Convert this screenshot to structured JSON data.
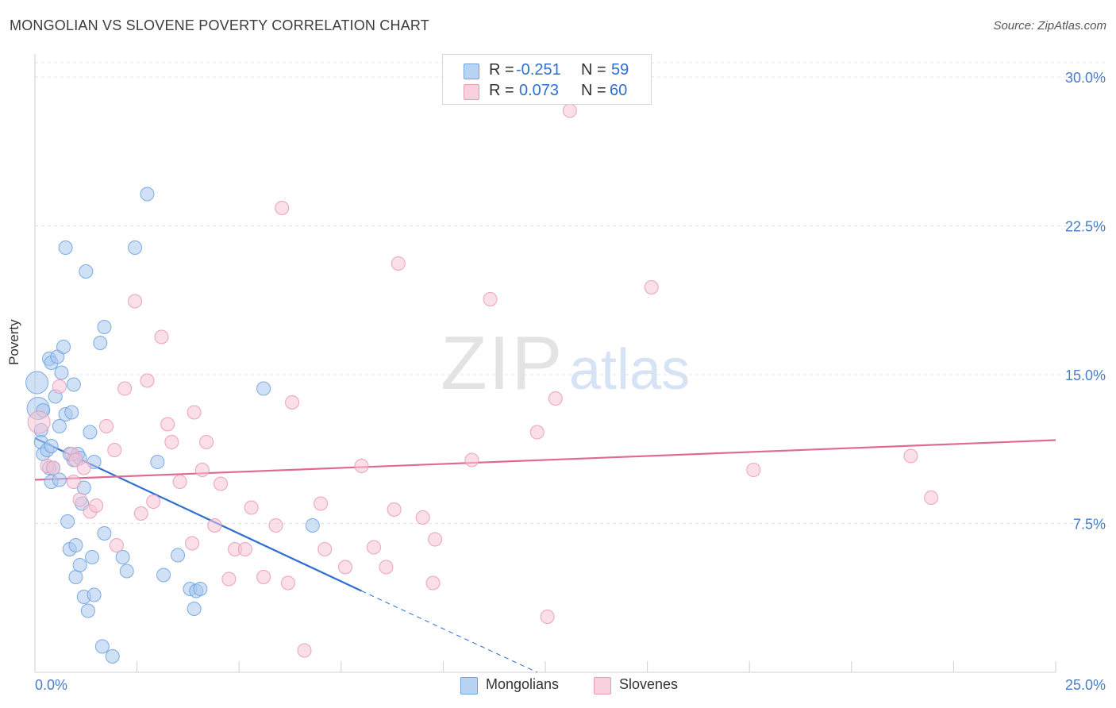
{
  "header": {
    "title": "MONGOLIAN VS SLOVENE POVERTY CORRELATION CHART",
    "source": "Source: ZipAtlas.com"
  },
  "watermark": {
    "zip": "ZIP",
    "atlas": "atlas"
  },
  "legend": {
    "rows": [
      {
        "r_label": "R =",
        "r_value": "-0.251",
        "n_label": "N =",
        "n_value": "59",
        "color": "#6fa3e0"
      },
      {
        "r_label": "R =",
        "r_value": "0.073",
        "n_label": "N =",
        "n_value": "60",
        "color": "#f0a0bc"
      }
    ]
  },
  "bottom_legend": [
    {
      "label": "Mongolians",
      "color": "#6fa3e0"
    },
    {
      "label": "Slovenes",
      "color": "#f0a0bc"
    }
  ],
  "colors": {
    "mongolian_fill": "#a9c8ef",
    "mongolian_stroke": "#6fa3e0",
    "mongolian_line": "#2f6fd1",
    "slovene_fill": "#f7c4d5",
    "slovene_stroke": "#e99ab6",
    "slovene_line": "#e06a96",
    "tick_text": "#4a7cc7"
  },
  "chart_data": {
    "type": "scatter",
    "title": "MONGOLIAN VS SLOVENE POVERTY CORRELATION CHART",
    "xlabel": "",
    "ylabel": "Poverty",
    "xlim": [
      0,
      25
    ],
    "ylim": [
      0,
      31
    ],
    "x_tick_labels": [
      {
        "value": 0,
        "label": "0.0%"
      },
      {
        "value": 25,
        "label": "25.0%"
      }
    ],
    "y_tick_labels": [
      {
        "value": 7.5,
        "label": "7.5%"
      },
      {
        "value": 15,
        "label": "15.0%"
      },
      {
        "value": 22.5,
        "label": "22.5%"
      },
      {
        "value": 30,
        "label": "30.0%"
      }
    ],
    "grid": true,
    "legend_position": "top-center",
    "series": [
      {
        "name": "Mongolians",
        "r": -0.251,
        "n": 59,
        "trend": {
          "x0": 0,
          "y0": 11.8,
          "x1": 8.0,
          "y1": 4.1,
          "dash_to_x": 12.3,
          "dash_to_y": 0
        },
        "points": [
          [
            0.05,
            14.6
          ],
          [
            0.08,
            13.3
          ],
          [
            0.15,
            12.2
          ],
          [
            0.15,
            11.6
          ],
          [
            0.2,
            11.0
          ],
          [
            0.2,
            13.2
          ],
          [
            0.3,
            11.2
          ],
          [
            0.35,
            10.3
          ],
          [
            0.35,
            15.8
          ],
          [
            0.4,
            11.4
          ],
          [
            0.4,
            15.6
          ],
          [
            0.45,
            10.3
          ],
          [
            0.4,
            9.6
          ],
          [
            0.5,
            13.9
          ],
          [
            0.55,
            15.9
          ],
          [
            0.6,
            12.4
          ],
          [
            0.6,
            9.7
          ],
          [
            0.65,
            15.1
          ],
          [
            0.7,
            16.4
          ],
          [
            0.75,
            13.0
          ],
          [
            0.75,
            21.4
          ],
          [
            0.8,
            7.6
          ],
          [
            0.85,
            11.0
          ],
          [
            0.85,
            6.2
          ],
          [
            0.9,
            13.1
          ],
          [
            0.95,
            10.7
          ],
          [
            0.95,
            14.5
          ],
          [
            1.0,
            6.4
          ],
          [
            1.0,
            4.8
          ],
          [
            1.05,
            11.0
          ],
          [
            1.1,
            10.8
          ],
          [
            1.1,
            5.4
          ],
          [
            1.15,
            8.5
          ],
          [
            1.2,
            9.3
          ],
          [
            1.2,
            3.8
          ],
          [
            1.25,
            20.2
          ],
          [
            1.3,
            3.1
          ],
          [
            1.35,
            12.1
          ],
          [
            1.4,
            5.8
          ],
          [
            1.45,
            10.6
          ],
          [
            1.45,
            3.9
          ],
          [
            1.6,
            16.6
          ],
          [
            1.65,
            1.3
          ],
          [
            1.7,
            17.4
          ],
          [
            1.7,
            7.0
          ],
          [
            1.9,
            0.8
          ],
          [
            2.15,
            5.8
          ],
          [
            2.25,
            5.1
          ],
          [
            2.45,
            21.4
          ],
          [
            2.75,
            24.1
          ],
          [
            3.0,
            10.6
          ],
          [
            3.15,
            4.9
          ],
          [
            3.5,
            5.9
          ],
          [
            3.8,
            4.2
          ],
          [
            3.9,
            3.2
          ],
          [
            3.95,
            4.1
          ],
          [
            4.05,
            4.2
          ],
          [
            5.6,
            14.3
          ],
          [
            6.8,
            7.4
          ]
        ]
      },
      {
        "name": "Slovenes",
        "r": 0.073,
        "n": 60,
        "trend": {
          "x0": 0,
          "y0": 9.7,
          "x1": 25,
          "y1": 11.7
        },
        "points": [
          [
            0.1,
            12.6
          ],
          [
            0.3,
            10.4
          ],
          [
            0.45,
            10.3
          ],
          [
            0.6,
            14.4
          ],
          [
            0.9,
            11.0
          ],
          [
            0.95,
            9.6
          ],
          [
            1.0,
            10.7
          ],
          [
            1.1,
            8.7
          ],
          [
            1.2,
            10.3
          ],
          [
            1.35,
            8.1
          ],
          [
            1.5,
            8.4
          ],
          [
            1.75,
            12.4
          ],
          [
            1.95,
            11.2
          ],
          [
            2.0,
            6.4
          ],
          [
            2.2,
            14.3
          ],
          [
            2.45,
            18.7
          ],
          [
            2.6,
            8.0
          ],
          [
            2.75,
            14.7
          ],
          [
            2.9,
            8.6
          ],
          [
            3.1,
            16.9
          ],
          [
            3.25,
            12.5
          ],
          [
            3.35,
            11.6
          ],
          [
            3.55,
            9.6
          ],
          [
            3.85,
            6.5
          ],
          [
            3.9,
            13.1
          ],
          [
            4.1,
            10.2
          ],
          [
            4.2,
            11.6
          ],
          [
            4.4,
            7.4
          ],
          [
            4.55,
            9.5
          ],
          [
            4.75,
            4.7
          ],
          [
            4.9,
            6.2
          ],
          [
            5.15,
            6.2
          ],
          [
            5.3,
            8.3
          ],
          [
            5.6,
            4.8
          ],
          [
            5.9,
            7.4
          ],
          [
            6.05,
            23.4
          ],
          [
            6.2,
            4.5
          ],
          [
            6.3,
            13.6
          ],
          [
            6.6,
            1.1
          ],
          [
            7.0,
            8.5
          ],
          [
            7.1,
            6.2
          ],
          [
            7.6,
            5.3
          ],
          [
            8.0,
            10.4
          ],
          [
            8.3,
            6.3
          ],
          [
            8.6,
            5.3
          ],
          [
            8.8,
            8.2
          ],
          [
            8.9,
            20.6
          ],
          [
            9.5,
            7.8
          ],
          [
            9.75,
            4.5
          ],
          [
            9.8,
            6.7
          ],
          [
            10.7,
            10.7
          ],
          [
            11.15,
            18.8
          ],
          [
            12.3,
            12.1
          ],
          [
            12.55,
            2.8
          ],
          [
            12.75,
            13.8
          ],
          [
            13.1,
            28.3
          ],
          [
            15.1,
            19.4
          ],
          [
            17.6,
            10.2
          ],
          [
            21.45,
            10.9
          ],
          [
            21.95,
            8.8
          ]
        ]
      }
    ]
  }
}
